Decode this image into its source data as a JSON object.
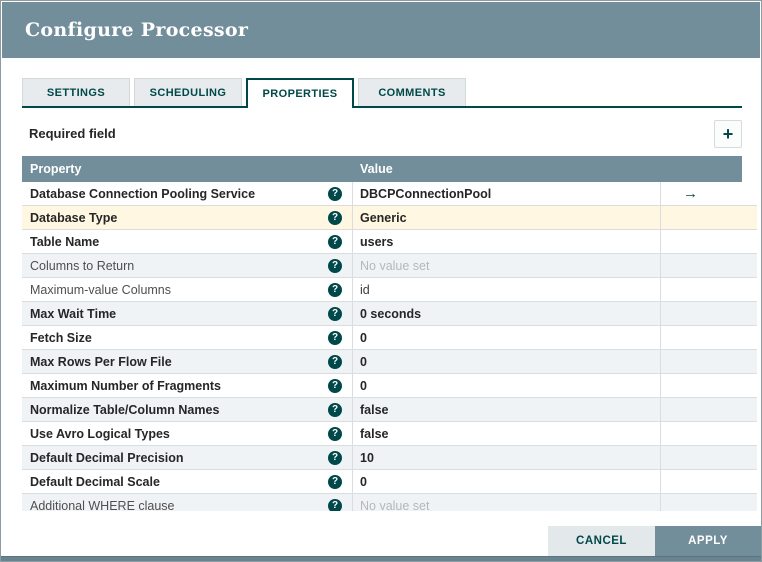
{
  "dialog": {
    "title": "Configure Processor"
  },
  "tabs": [
    {
      "label": "SETTINGS",
      "active": false
    },
    {
      "label": "SCHEDULING",
      "active": false
    },
    {
      "label": "PROPERTIES",
      "active": true
    },
    {
      "label": "COMMENTS",
      "active": false
    }
  ],
  "toolbar": {
    "required_field_label": "Required field"
  },
  "icons": {
    "add": "+",
    "help": "?",
    "goto": "→"
  },
  "table": {
    "columns": [
      "Property",
      "Value"
    ],
    "rows": [
      {
        "name": "Database Connection Pooling Service",
        "required": true,
        "value": "DBCPConnectionPool",
        "value_set": true,
        "highlighted": false,
        "has_goto": true
      },
      {
        "name": "Database Type",
        "required": true,
        "value": "Generic",
        "value_set": true,
        "highlighted": true,
        "has_goto": false
      },
      {
        "name": "Table Name",
        "required": true,
        "value": "users",
        "value_set": true,
        "highlighted": false,
        "has_goto": false
      },
      {
        "name": "Columns to Return",
        "required": false,
        "value": "No value set",
        "value_set": false,
        "highlighted": false,
        "has_goto": false
      },
      {
        "name": "Maximum-value Columns",
        "required": false,
        "value": "id",
        "value_set": true,
        "highlighted": false,
        "has_goto": false
      },
      {
        "name": "Max Wait Time",
        "required": true,
        "value": "0 seconds",
        "value_set": true,
        "highlighted": false,
        "has_goto": false
      },
      {
        "name": "Fetch Size",
        "required": true,
        "value": "0",
        "value_set": true,
        "highlighted": false,
        "has_goto": false
      },
      {
        "name": "Max Rows Per Flow File",
        "required": true,
        "value": "0",
        "value_set": true,
        "highlighted": false,
        "has_goto": false
      },
      {
        "name": "Maximum Number of Fragments",
        "required": true,
        "value": "0",
        "value_set": true,
        "highlighted": false,
        "has_goto": false
      },
      {
        "name": "Normalize Table/Column Names",
        "required": true,
        "value": "false",
        "value_set": true,
        "highlighted": false,
        "has_goto": false
      },
      {
        "name": "Use Avro Logical Types",
        "required": true,
        "value": "false",
        "value_set": true,
        "highlighted": false,
        "has_goto": false
      },
      {
        "name": "Default Decimal Precision",
        "required": true,
        "value": "10",
        "value_set": true,
        "highlighted": false,
        "has_goto": false
      },
      {
        "name": "Default Decimal Scale",
        "required": true,
        "value": "0",
        "value_set": true,
        "highlighted": false,
        "has_goto": false
      },
      {
        "name": "Additional WHERE clause",
        "required": false,
        "value": "No value set",
        "value_set": false,
        "highlighted": false,
        "has_goto": false
      }
    ]
  },
  "footer": {
    "cancel_label": "CANCEL",
    "apply_label": "APPLY"
  },
  "colors": {
    "slate": "#728e9b",
    "accent_teal": "#004849",
    "row_highlight": "#fff7e1",
    "row_stripe": "#f0f3f5",
    "unset_text": "#b4b8bb"
  }
}
